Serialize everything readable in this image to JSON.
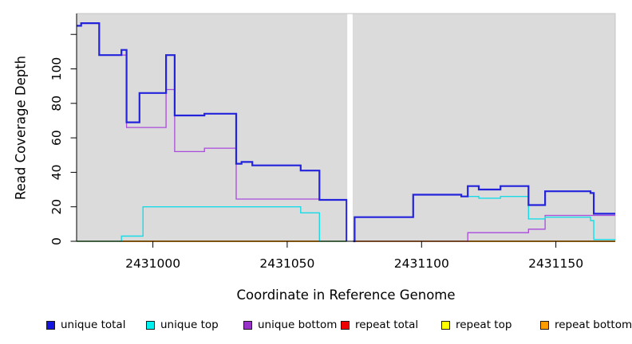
{
  "chart_data": {
    "type": "line",
    "step": true,
    "title": "",
    "xlabel": "Coordinate in Reference Genome",
    "ylabel": "Read Coverage Depth",
    "xlim": [
      2430971.6,
      2431172.1
    ],
    "ylim": [
      0,
      132.1
    ],
    "x_ticks": [
      2431000,
      2431050,
      2431100,
      2431150
    ],
    "y_ticks": [
      0,
      20,
      40,
      60,
      80,
      100
    ],
    "y_ticks_unlabeled": [
      120
    ],
    "grid": false,
    "panel_bg": "#DBDBDB",
    "panel_border": "#c4c4c4",
    "axis_color": "#000000",
    "gap_band": {
      "x_start": 2431072.35,
      "x_end": 2431074.35,
      "color": "#ffffff"
    },
    "series": [
      {
        "name": "repeat total",
        "color": "#E60000",
        "width": 1.2,
        "segments": [
          [
            [
              2430971.6,
              0
            ],
            [
              2431072.1,
              0
            ]
          ],
          [
            [
              2431074.6,
              0
            ],
            [
              2431172.1,
              0
            ]
          ]
        ]
      },
      {
        "name": "repeat top",
        "color": "#FFFF00",
        "width": 1.2,
        "segments": [
          [
            [
              2430971.6,
              0
            ],
            [
              2431072.1,
              0
            ]
          ],
          [
            [
              2431074.6,
              0
            ],
            [
              2431172.1,
              0
            ]
          ]
        ]
      },
      {
        "name": "repeat bottom",
        "color": "#FF9D00",
        "width": 1.8,
        "segments": [
          [
            [
              2430971.6,
              0
            ],
            [
              2431072.1,
              0
            ]
          ],
          [
            [
              2431074.6,
              0
            ],
            [
              2431172.1,
              0
            ]
          ]
        ]
      },
      {
        "name": "unique bottom",
        "color": "#A94BDC",
        "width": 1.3,
        "segments": [
          [
            [
              2430971.6,
              125
            ],
            [
              2430973.3,
              126.5
            ],
            [
              2430980,
              108
            ],
            [
              2430990.2,
              66
            ],
            [
              2431004.9,
              88
            ],
            [
              2431008.1,
              52
            ],
            [
              2431019.2,
              54
            ],
            [
              2431031,
              24.5
            ],
            [
              2431062,
              24
            ],
            [
              2431072.1,
              0
            ]
          ],
          [
            [
              2431074.6,
              0
            ],
            [
              2431117.2,
              5
            ],
            [
              2431139.8,
              7
            ],
            [
              2431146,
              15
            ],
            [
              2431172.1,
              15
            ]
          ]
        ]
      },
      {
        "name": "unique top",
        "color": "#17DCE8",
        "width": 1.4,
        "segments": [
          [
            [
              2430971.6,
              0
            ],
            [
              2430988.3,
              3
            ],
            [
              2430996.3,
              20
            ],
            [
              2431055,
              16.5
            ],
            [
              2431062,
              0
            ],
            [
              2431072.1,
              0
            ]
          ],
          [
            [
              2431074.6,
              0
            ],
            [
              2431075.1,
              14
            ],
            [
              2431096.9,
              27
            ],
            [
              2431114.8,
              26
            ],
            [
              2431117.2,
              26
            ],
            [
              2431121.3,
              25
            ],
            [
              2431129.4,
              26
            ],
            [
              2431139.8,
              13
            ],
            [
              2431146,
              14
            ],
            [
              2431162.9,
              12
            ],
            [
              2431164.1,
              1
            ],
            [
              2431172.1,
              1
            ]
          ]
        ]
      },
      {
        "name": "unique total",
        "color": "#2323DC",
        "width": 2.2,
        "segments": [
          [
            [
              2430971.6,
              125
            ],
            [
              2430973.3,
              126.5
            ],
            [
              2430980,
              108
            ],
            [
              2430988.3,
              111
            ],
            [
              2430990.2,
              69
            ],
            [
              2430995,
              86
            ],
            [
              2431004.9,
              108
            ],
            [
              2431008.1,
              73
            ],
            [
              2431019.2,
              74
            ],
            [
              2431031,
              45
            ],
            [
              2431033,
              46
            ],
            [
              2431037,
              44
            ],
            [
              2431055,
              41
            ],
            [
              2431062,
              24
            ],
            [
              2431072.1,
              0
            ]
          ],
          [
            [
              2431074.6,
              0
            ],
            [
              2431075.1,
              14
            ],
            [
              2431096.9,
              27
            ],
            [
              2431114.8,
              26
            ],
            [
              2431117.2,
              32
            ],
            [
              2431121.3,
              30
            ],
            [
              2431129.4,
              32
            ],
            [
              2431139.8,
              21
            ],
            [
              2431146,
              29
            ],
            [
              2431162.9,
              28
            ],
            [
              2431164.1,
              16
            ],
            [
              2431172.1,
              16
            ]
          ]
        ]
      }
    ],
    "legend": [
      {
        "label": "unique total",
        "color": "#1414E0"
      },
      {
        "label": "unique top",
        "color": "#00EFEF"
      },
      {
        "label": "unique bottom",
        "color": "#9832C8"
      },
      {
        "label": "repeat total",
        "color": "#EE0000"
      },
      {
        "label": "repeat top",
        "color": "#FFFF00"
      },
      {
        "label": "repeat bottom",
        "color": "#FF9D00"
      }
    ],
    "legend_position": "bottom"
  }
}
